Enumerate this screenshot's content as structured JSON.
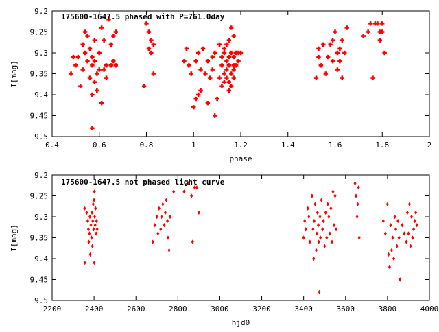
{
  "chart_data": [
    {
      "type": "scatter",
      "title": "175600-1647.5 phased with P=761.0day",
      "xlabel": "phase",
      "ylabel": "I[mag]",
      "xlim": [
        0.4,
        2
      ],
      "ylim": [
        9.5,
        9.2
      ],
      "y_inverted": true,
      "xticks": [
        "0.4",
        "0.6",
        "0.8",
        "1",
        "1.2",
        "1.4",
        "1.6",
        "1.8",
        "2"
      ],
      "yticks": [
        "9.2",
        "9.25",
        "9.3",
        "9.35",
        "9.4",
        "9.45",
        "9.5"
      ],
      "marker": "filled-cross",
      "color": "#ff0000",
      "grid": false,
      "series": [
        {
          "points": [
            [
              0.48,
              9.35
            ],
            [
              0.49,
              9.31
            ],
            [
              0.5,
              9.33
            ],
            [
              0.51,
              9.31
            ],
            [
              0.52,
              9.38
            ],
            [
              0.53,
              9.28
            ],
            [
              0.53,
              9.34
            ],
            [
              0.54,
              9.3
            ],
            [
              0.54,
              9.25
            ],
            [
              0.55,
              9.26
            ],
            [
              0.55,
              9.32
            ],
            [
              0.56,
              9.29
            ],
            [
              0.56,
              9.36
            ],
            [
              0.57,
              9.33
            ],
            [
              0.57,
              9.31
            ],
            [
              0.57,
              9.4
            ],
            [
              0.57,
              9.48
            ],
            [
              0.58,
              9.27
            ],
            [
              0.58,
              9.37
            ],
            [
              0.58,
              9.32
            ],
            [
              0.59,
              9.35
            ],
            [
              0.59,
              9.39
            ],
            [
              0.6,
              9.34
            ],
            [
              0.6,
              9.3
            ],
            [
              0.61,
              9.42
            ],
            [
              0.61,
              9.24
            ],
            [
              0.62,
              9.34
            ],
            [
              0.62,
              9.27
            ],
            [
              0.63,
              9.36
            ],
            [
              0.63,
              9.33
            ],
            [
              0.64,
              9.22
            ],
            [
              0.65,
              9.28
            ],
            [
              0.65,
              9.33
            ],
            [
              0.66,
              9.26
            ],
            [
              0.66,
              9.32
            ],
            [
              0.67,
              9.25
            ],
            [
              0.67,
              9.33
            ],
            [
              0.79,
              9.38
            ],
            [
              0.8,
              9.23
            ],
            [
              0.81,
              9.29
            ],
            [
              0.81,
              9.25
            ],
            [
              0.82,
              9.27
            ],
            [
              0.82,
              9.3
            ],
            [
              0.83,
              9.28
            ],
            [
              0.83,
              9.35
            ],
            [
              0.96,
              9.32
            ],
            [
              0.97,
              9.29
            ],
            [
              0.98,
              9.33
            ],
            [
              0.99,
              9.35
            ],
            [
              1.0,
              9.43
            ],
            [
              1.01,
              9.41
            ],
            [
              1.01,
              9.32
            ],
            [
              1.02,
              9.4
            ],
            [
              1.02,
              9.3
            ],
            [
              1.03,
              9.39
            ],
            [
              1.03,
              9.34
            ],
            [
              1.04,
              9.29
            ],
            [
              1.05,
              9.35
            ],
            [
              1.06,
              9.32
            ],
            [
              1.06,
              9.42
            ],
            [
              1.07,
              9.36
            ],
            [
              1.08,
              9.31
            ],
            [
              1.08,
              9.34
            ],
            [
              1.09,
              9.45
            ],
            [
              1.09,
              9.3
            ],
            [
              1.1,
              9.41
            ],
            [
              1.11,
              9.28
            ],
            [
              1.11,
              9.36
            ],
            [
              1.12,
              9.33
            ],
            [
              1.12,
              9.38
            ],
            [
              1.12,
              9.31
            ],
            [
              1.13,
              9.29
            ],
            [
              1.13,
              9.35
            ],
            [
              1.13,
              9.3
            ],
            [
              1.13,
              9.37
            ],
            [
              1.14,
              9.32
            ],
            [
              1.14,
              9.34
            ],
            [
              1.14,
              9.28
            ],
            [
              1.14,
              9.36
            ],
            [
              1.15,
              9.31
            ],
            [
              1.15,
              9.39
            ],
            [
              1.15,
              9.27
            ],
            [
              1.15,
              9.33
            ],
            [
              1.15,
              9.37
            ],
            [
              1.16,
              9.24
            ],
            [
              1.16,
              9.3
            ],
            [
              1.16,
              9.35
            ],
            [
              1.16,
              9.38
            ],
            [
              1.17,
              9.31
            ],
            [
              1.17,
              9.26
            ],
            [
              1.17,
              9.33
            ],
            [
              1.17,
              9.34
            ],
            [
              1.17,
              9.36
            ],
            [
              1.18,
              9.3
            ],
            [
              1.18,
              9.33
            ],
            [
              1.19,
              9.3
            ],
            [
              1.19,
              9.32
            ],
            [
              1.2,
              9.3
            ],
            [
              1.52,
              9.36
            ],
            [
              1.53,
              9.31
            ],
            [
              1.53,
              9.29
            ],
            [
              1.54,
              9.33
            ],
            [
              1.55,
              9.28
            ],
            [
              1.56,
              9.35
            ],
            [
              1.57,
              9.31
            ],
            [
              1.58,
              9.28
            ],
            [
              1.59,
              9.32
            ],
            [
              1.59,
              9.27
            ],
            [
              1.6,
              9.25
            ],
            [
              1.61,
              9.34
            ],
            [
              1.61,
              9.3
            ],
            [
              1.62,
              9.32
            ],
            [
              1.62,
              9.29
            ],
            [
              1.63,
              9.36
            ],
            [
              1.63,
              9.27
            ],
            [
              1.64,
              9.3
            ],
            [
              1.65,
              9.24
            ],
            [
              1.72,
              9.26
            ],
            [
              1.74,
              9.25
            ],
            [
              1.75,
              9.23
            ],
            [
              1.76,
              9.36
            ],
            [
              1.77,
              9.23
            ],
            [
              1.78,
              9.23
            ],
            [
              1.79,
              9.27
            ],
            [
              1.79,
              9.25
            ],
            [
              1.8,
              9.23
            ],
            [
              1.8,
              9.25
            ],
            [
              1.81,
              9.3
            ]
          ]
        }
      ]
    },
    {
      "type": "scatter",
      "title": "175600-1647.5 not phased light curve",
      "xlabel": "hjd0",
      "ylabel": "I[mag]",
      "xlim": [
        2200,
        4000
      ],
      "ylim": [
        9.5,
        9.2
      ],
      "y_inverted": true,
      "xticks": [
        "2200",
        "2400",
        "2600",
        "2800",
        "3000",
        "3200",
        "3400",
        "3600",
        "3800",
        "4000"
      ],
      "yticks": [
        "9.2",
        "9.25",
        "9.3",
        "9.35",
        "9.4",
        "9.45",
        "9.5"
      ],
      "marker": "diamond",
      "color": "#ff0000",
      "grid": false,
      "series": [
        {
          "points": [
            [
              2355,
              9.28
            ],
            [
              2356,
              9.41
            ],
            [
              2365,
              9.29
            ],
            [
              2370,
              9.31
            ],
            [
              2373,
              9.33
            ],
            [
              2375,
              9.36
            ],
            [
              2378,
              9.34
            ],
            [
              2380,
              9.3
            ],
            [
              2382,
              9.39
            ],
            [
              2385,
              9.32
            ],
            [
              2388,
              9.35
            ],
            [
              2390,
              9.29
            ],
            [
              2392,
              9.37
            ],
            [
              2394,
              9.31
            ],
            [
              2396,
              9.27
            ],
            [
              2398,
              9.33
            ],
            [
              2400,
              9.26
            ],
            [
              2401,
              9.41
            ],
            [
              2402,
              9.24
            ],
            [
              2403,
              9.3
            ],
            [
              2405,
              9.32
            ],
            [
              2407,
              9.28
            ],
            [
              2410,
              9.34
            ],
            [
              2412,
              9.31
            ],
            [
              2415,
              9.33
            ],
            [
              2680,
              9.36
            ],
            [
              2690,
              9.32
            ],
            [
              2700,
              9.3
            ],
            [
              2705,
              9.34
            ],
            [
              2710,
              9.28
            ],
            [
              2718,
              9.33
            ],
            [
              2722,
              9.3
            ],
            [
              2728,
              9.27
            ],
            [
              2735,
              9.32
            ],
            [
              2740,
              9.29
            ],
            [
              2745,
              9.26
            ],
            [
              2750,
              9.31
            ],
            [
              2753,
              9.35
            ],
            [
              2758,
              9.38
            ],
            [
              2763,
              9.3
            ],
            [
              2780,
              9.24
            ],
            [
              2830,
              9.24
            ],
            [
              2850,
              9.22
            ],
            [
              2865,
              9.25
            ],
            [
              2870,
              9.36
            ],
            [
              2880,
              9.23
            ],
            [
              2890,
              9.23
            ],
            [
              2900,
              9.29
            ],
            [
              3400,
              9.35
            ],
            [
              3405,
              9.31
            ],
            [
              3410,
              9.33
            ],
            [
              3420,
              9.28
            ],
            [
              3425,
              9.3
            ],
            [
              3430,
              9.36
            ],
            [
              3440,
              9.25
            ],
            [
              3445,
              9.33
            ],
            [
              3448,
              9.4
            ],
            [
              3450,
              9.31
            ],
            [
              3455,
              9.27
            ],
            [
              3460,
              9.38
            ],
            [
              3463,
              9.34
            ],
            [
              3466,
              9.29
            ],
            [
              3470,
              9.32
            ],
            [
              3472,
              9.36
            ],
            [
              3475,
              9.48
            ],
            [
              3478,
              9.3
            ],
            [
              3480,
              9.35
            ],
            [
              3485,
              9.26
            ],
            [
              3490,
              9.33
            ],
            [
              3495,
              9.31
            ],
            [
              3500,
              9.37
            ],
            [
              3505,
              9.29
            ],
            [
              3510,
              9.35
            ],
            [
              3515,
              9.27
            ],
            [
              3520,
              9.3
            ],
            [
              3525,
              9.34
            ],
            [
              3530,
              9.28
            ],
            [
              3535,
              9.36
            ],
            [
              3540,
              9.24
            ],
            [
              3545,
              9.32
            ],
            [
              3550,
              9.25
            ],
            [
              3555,
              9.33
            ],
            [
              3645,
              9.22
            ],
            [
              3650,
              9.25
            ],
            [
              3655,
              9.3
            ],
            [
              3658,
              9.27
            ],
            [
              3662,
              9.23
            ],
            [
              3665,
              9.35
            ],
            [
              3780,
              9.31
            ],
            [
              3790,
              9.34
            ],
            [
              3800,
              9.27
            ],
            [
              3805,
              9.39
            ],
            [
              3810,
              9.42
            ],
            [
              3815,
              9.32
            ],
            [
              3820,
              9.38
            ],
            [
              3825,
              9.35
            ],
            [
              3830,
              9.4
            ],
            [
              3835,
              9.3
            ],
            [
              3840,
              9.33
            ],
            [
              3845,
              9.37
            ],
            [
              3850,
              9.31
            ],
            [
              3855,
              9.35
            ],
            [
              3860,
              9.45
            ],
            [
              3870,
              9.32
            ],
            [
              3880,
              9.34
            ],
            [
              3890,
              9.36
            ],
            [
              3895,
              9.29
            ],
            [
              3900,
              9.34
            ],
            [
              3905,
              9.27
            ],
            [
              3910,
              9.37
            ],
            [
              3915,
              9.3
            ],
            [
              3920,
              9.35
            ],
            [
              3925,
              9.33
            ],
            [
              3930,
              9.31
            ],
            [
              3935,
              9.29
            ],
            [
              3940,
              9.32
            ]
          ]
        }
      ]
    }
  ]
}
